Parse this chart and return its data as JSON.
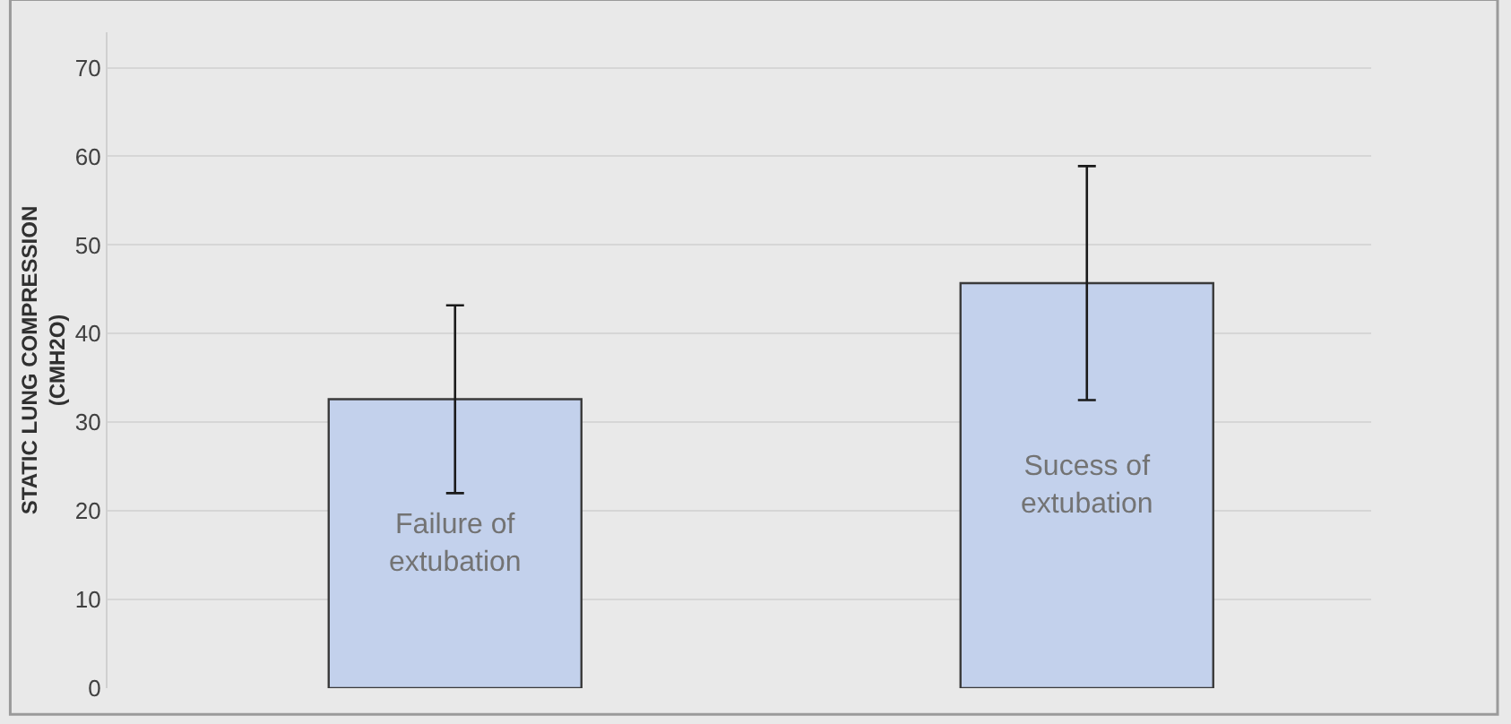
{
  "chart_data": {
    "type": "bar",
    "ylabel": "STATIC LUNG COMPRESSION (CMH2O)",
    "categories": [
      "Failure of extubation",
      "Sucess of extubation"
    ],
    "values": [
      32.6,
      45.7
    ],
    "errors": [
      10.6,
      13.2
    ],
    "color": "#c3d1ec",
    "ylim": [
      0,
      74
    ],
    "yticks": [
      0,
      10,
      20,
      30,
      40,
      50,
      60,
      70
    ],
    "grid": "y",
    "tick_labels": "y"
  }
}
